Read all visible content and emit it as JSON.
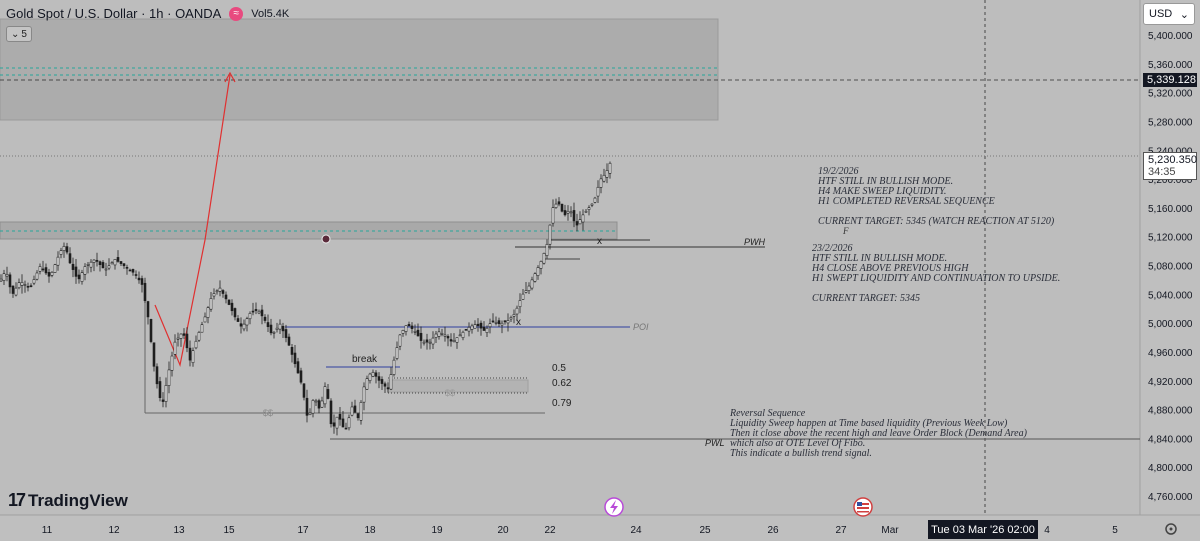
{
  "header": {
    "symbol_title": "Gold Spot / U.S. Dollar · 1h · OANDA",
    "volume_label": "Vol",
    "volume_value": "5.4K",
    "interval_chip": "5"
  },
  "currency_selector": {
    "value": "USD"
  },
  "branding": {
    "name": "TradingView"
  },
  "price_axis": {
    "labels": [
      "5,400.000",
      "5,360.000",
      "5,320.000",
      "5,280.000",
      "5,240.000",
      "5,200.000",
      "5,160.000",
      "5,120.000",
      "5,080.000",
      "5,040.000",
      "5,000.000",
      "4,960.000",
      "4,920.000",
      "4,880.000",
      "4,840.000",
      "4,800.000",
      "4,760.000"
    ],
    "crosshair_price": "5,339.128",
    "last_price": "5,230.350",
    "countdown": "34:35"
  },
  "time_axis": {
    "labels": [
      "11",
      "12",
      "13",
      "15",
      "17",
      "18",
      "19",
      "20",
      "22",
      "24",
      "25",
      "26",
      "27",
      "Mar",
      "4",
      "5"
    ],
    "crosshair_date": "Tue 03 Mar '26   02:00"
  },
  "annotations": {
    "pwh": "PWH",
    "pwl": "PWL",
    "poi": "POI",
    "break": "break",
    "ss1": "$$",
    "ss2": "$$",
    "x1": "x",
    "x2": "x",
    "fib_05": "0.5",
    "fib_062": "0.62",
    "fib_079": "0.79",
    "f": "F"
  },
  "notes": {
    "note_1": "19/2/2026\nHTF STILL IN BULLISH MODE.\nH4 MAKE SWEEP LIQUIDITY.\nH1 COMPLETED REVERSAL SEQUENCE\n\nCURRENT TARGET: 5345 (WATCH REACTION AT 5120)",
    "note_2": "23/2/2026\nHTF STILL IN BULLISH MODE.\nH4 CLOSE ABOVE PREVIOUS HIGH\nH1 SWEPT LIQUIDITY AND CONTINUATION TO UPSIDE.\n\nCURRENT TARGET: 5345",
    "note_3": "Reversal Sequence\nLiquidity Sweep happen at Time based liquidity (Previous Week Low)\nThen it close above the recent high and leave Order Block (Demand Area)\nwhich also at OTE Level Of Fibo.\nThis indicate a bullish trend signal."
  },
  "colors": {
    "background": "#bdbdbd",
    "candle": "#1f1f1f",
    "zone": "#a9a9a9",
    "teal_dash": "#26a69a",
    "red_path": "#e03030",
    "poi_line": "#2f3fa0"
  },
  "chart_data": {
    "type": "candlestick",
    "symbol": "XAUUSD",
    "timeframe": "1h",
    "ylim": [
      4740,
      5420
    ],
    "price_path": [
      [
        0,
        5060
      ],
      [
        6,
        5075
      ],
      [
        12,
        5040
      ],
      [
        20,
        5060
      ],
      [
        30,
        5050
      ],
      [
        40,
        5080
      ],
      [
        50,
        5065
      ],
      [
        60,
        5100
      ],
      [
        65,
        5110
      ],
      [
        70,
        5085
      ],
      [
        78,
        5060
      ],
      [
        85,
        5080
      ],
      [
        95,
        5090
      ],
      [
        105,
        5075
      ],
      [
        115,
        5090
      ],
      [
        125,
        5080
      ],
      [
        135,
        5070
      ],
      [
        142,
        5055
      ],
      [
        148,
        5010
      ],
      [
        155,
        4930
      ],
      [
        162,
        4885
      ],
      [
        168,
        4930
      ],
      [
        175,
        4975
      ],
      [
        183,
        4990
      ],
      [
        190,
        4950
      ],
      [
        198,
        4985
      ],
      [
        205,
        5010
      ],
      [
        212,
        5040
      ],
      [
        220,
        5050
      ],
      [
        228,
        5030
      ],
      [
        235,
        5010
      ],
      [
        242,
        4995
      ],
      [
        250,
        5015
      ],
      [
        258,
        5020
      ],
      [
        265,
        5005
      ],
      [
        272,
        4985
      ],
      [
        280,
        5000
      ],
      [
        288,
        4975
      ],
      [
        295,
        4945
      ],
      [
        302,
        4915
      ],
      [
        308,
        4865
      ],
      [
        314,
        4900
      ],
      [
        320,
        4880
      ],
      [
        326,
        4920
      ],
      [
        332,
        4850
      ],
      [
        338,
        4875
      ],
      [
        345,
        4850
      ],
      [
        352,
        4885
      ],
      [
        358,
        4870
      ],
      [
        365,
        4920
      ],
      [
        372,
        4935
      ],
      [
        380,
        4920
      ],
      [
        388,
        4910
      ],
      [
        394,
        4950
      ],
      [
        400,
        4985
      ],
      [
        407,
        5000
      ],
      [
        415,
        4990
      ],
      [
        422,
        4975
      ],
      [
        430,
        4975
      ],
      [
        438,
        4990
      ],
      [
        445,
        4985
      ],
      [
        452,
        4975
      ],
      [
        460,
        4985
      ],
      [
        468,
        4995
      ],
      [
        476,
        5000
      ],
      [
        485,
        4990
      ],
      [
        492,
        5005
      ],
      [
        500,
        5000
      ],
      [
        508,
        5005
      ],
      [
        515,
        5015
      ],
      [
        522,
        5040
      ],
      [
        528,
        5050
      ],
      [
        535,
        5070
      ],
      [
        542,
        5090
      ],
      [
        548,
        5115
      ],
      [
        552,
        5160
      ],
      [
        558,
        5170
      ],
      [
        564,
        5150
      ],
      [
        570,
        5160
      ],
      [
        576,
        5135
      ],
      [
        582,
        5150
      ],
      [
        588,
        5160
      ],
      [
        594,
        5170
      ],
      [
        600,
        5200
      ],
      [
        606,
        5210
      ],
      [
        612,
        5230
      ]
    ],
    "levels": [
      {
        "name": "PWH",
        "price": 5115
      },
      {
        "name": "POI",
        "price": 4998
      },
      {
        "name": "PWL",
        "price": 4845
      },
      {
        "name": "fib 0.5",
        "price": 4926
      },
      {
        "name": "fib 0.62",
        "price": 4910
      },
      {
        "name": "fib 0.79",
        "price": 4878
      }
    ]
  }
}
